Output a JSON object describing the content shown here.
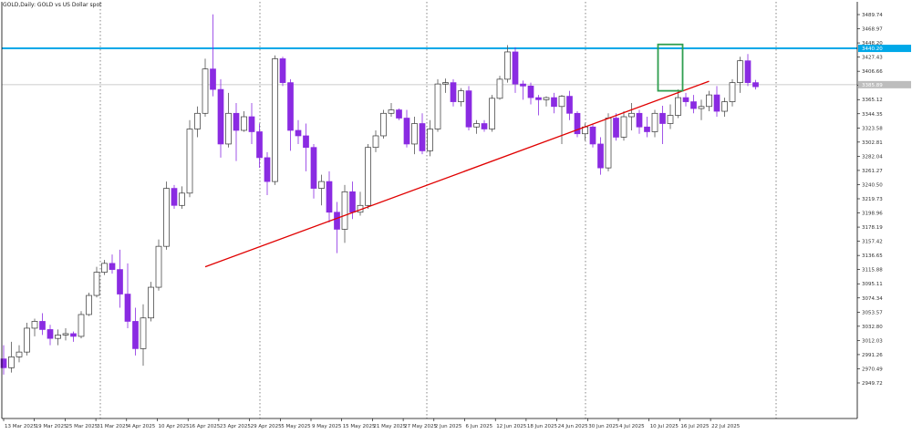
{
  "chart_data": {
    "type": "candlestick",
    "title": "GOLD,Daily: GOLD vs US Dollar spot",
    "colors": {
      "bullish_body": "#ffffff",
      "bearish_body": "#8a2be2",
      "wick": "#555555",
      "support_line": "#e00000",
      "resistance_line": "#00a8e8",
      "current_price_line": "#bdbdbd",
      "highlight_box": "#2e9e4f",
      "axis": "#000000",
      "grid": "#000000"
    },
    "price_axis": {
      "ylim": [
        2949.72,
        3489.74
      ],
      "ticks": [
        "3489.74",
        "3468.97",
        "3448.20",
        "3427.43",
        "3406.66",
        "3385.89",
        "3365.12",
        "3344.35",
        "3323.58",
        "3302.81",
        "3282.04",
        "3261.27",
        "3240.50",
        "3219.73",
        "3198.96",
        "3178.19",
        "3157.42",
        "3136.65",
        "3115.88",
        "3095.11",
        "3074.34",
        "3053.57",
        "3032.80",
        "3012.03",
        "2991.26",
        "2970.49",
        "2949.72"
      ],
      "resistance_label": "3440.20",
      "current_label": "3385.89"
    },
    "x_axis": {
      "labels": [
        "13 Mar 2025",
        "19 Mar 2025",
        "25 Mar 2025",
        "31 Mar 2025",
        "4 Apr 2025",
        "10 Apr 2025",
        "16 Apr 2025",
        "23 Apr 2025",
        "29 Apr 2025",
        "5 May 2025",
        "9 May 2025",
        "15 May 2025",
        "21 May 2025",
        "27 May 2025",
        "2 Jun 2025",
        "6 Jun 2025",
        "12 Jun 2025",
        "18 Jun 2025",
        "24 Jun 2025",
        "30 Jun 2025",
        "4 Jul 2025",
        "10 Jul 2025",
        "16 Jul 2025",
        "22 Jul 2025"
      ]
    },
    "resistance_level": 3440.2,
    "current_price": 3387,
    "support_line": {
      "from": [
        26,
        3120
      ],
      "to": [
        91,
        3392
      ]
    },
    "highlight_box": {
      "from_index": 85,
      "to_index": 87,
      "low": 3378,
      "high": 3446
    },
    "candles": [
      [
        2985,
        3005,
        2962,
        2972
      ],
      [
        2972,
        3010,
        2965,
        2988
      ],
      [
        2988,
        3005,
        2980,
        2995
      ],
      [
        2995,
        3038,
        2990,
        3030
      ],
      [
        3030,
        3044,
        3018,
        3040
      ],
      [
        3040,
        3052,
        3020,
        3028
      ],
      [
        3028,
        3035,
        3005,
        3015
      ],
      [
        3015,
        3028,
        3005,
        3020
      ],
      [
        3020,
        3030,
        3012,
        3022
      ],
      [
        3022,
        3025,
        3010,
        3018
      ],
      [
        3018,
        3055,
        3015,
        3050
      ],
      [
        3050,
        3082,
        3048,
        3078
      ],
      [
        3078,
        3120,
        3075,
        3112
      ],
      [
        3112,
        3130,
        3108,
        3125
      ],
      [
        3125,
        3138,
        3110,
        3116
      ],
      [
        3116,
        3145,
        3060,
        3080
      ],
      [
        3080,
        3125,
        3030,
        3040
      ],
      [
        3040,
        3060,
        2990,
        3000
      ],
      [
        3000,
        3065,
        2975,
        3045
      ],
      [
        3045,
        3098,
        3040,
        3090
      ],
      [
        3090,
        3160,
        3085,
        3150
      ],
      [
        3150,
        3245,
        3145,
        3235
      ],
      [
        3235,
        3240,
        3205,
        3210
      ],
      [
        3210,
        3238,
        3205,
        3228
      ],
      [
        3228,
        3335,
        3222,
        3322
      ],
      [
        3322,
        3355,
        3310,
        3345
      ],
      [
        3345,
        3425,
        3340,
        3410
      ],
      [
        3410,
        3490,
        3370,
        3380
      ],
      [
        3380,
        3395,
        3280,
        3300
      ],
      [
        3300,
        3375,
        3295,
        3345
      ],
      [
        3345,
        3360,
        3275,
        3320
      ],
      [
        3320,
        3348,
        3318,
        3340
      ],
      [
        3340,
        3360,
        3300,
        3318
      ],
      [
        3318,
        3330,
        3265,
        3280
      ],
      [
        3280,
        3288,
        3225,
        3245
      ],
      [
        3245,
        3430,
        3240,
        3425
      ],
      [
        3425,
        3428,
        3385,
        3390
      ],
      [
        3390,
        3395,
        3290,
        3320
      ],
      [
        3320,
        3335,
        3300,
        3312
      ],
      [
        3312,
        3330,
        3260,
        3295
      ],
      [
        3295,
        3300,
        3220,
        3235
      ],
      [
        3235,
        3255,
        3210,
        3245
      ],
      [
        3245,
        3260,
        3185,
        3200
      ],
      [
        3200,
        3215,
        3140,
        3175
      ],
      [
        3175,
        3240,
        3155,
        3230
      ],
      [
        3230,
        3245,
        3190,
        3200
      ],
      [
        3200,
        3230,
        3195,
        3210
      ],
      [
        3210,
        3300,
        3205,
        3295
      ],
      [
        3295,
        3320,
        3288,
        3312
      ],
      [
        3312,
        3350,
        3308,
        3345
      ],
      [
        3345,
        3360,
        3340,
        3350
      ],
      [
        3350,
        3352,
        3335,
        3338
      ],
      [
        3338,
        3350,
        3295,
        3300
      ],
      [
        3300,
        3340,
        3285,
        3330
      ],
      [
        3330,
        3345,
        3285,
        3290
      ],
      [
        3290,
        3335,
        3282,
        3322
      ],
      [
        3322,
        3395,
        3318,
        3388
      ],
      [
        3388,
        3396,
        3375,
        3390
      ],
      [
        3390,
        3395,
        3355,
        3362
      ],
      [
        3362,
        3382,
        3355,
        3378
      ],
      [
        3378,
        3385,
        3320,
        3325
      ],
      [
        3325,
        3335,
        3315,
        3330
      ],
      [
        3330,
        3335,
        3318,
        3322
      ],
      [
        3322,
        3372,
        3318,
        3367
      ],
      [
        3367,
        3400,
        3365,
        3395
      ],
      [
        3395,
        3445,
        3390,
        3435
      ],
      [
        3435,
        3442,
        3375,
        3388
      ],
      [
        3388,
        3393,
        3365,
        3385
      ],
      [
        3385,
        3390,
        3358,
        3368
      ],
      [
        3368,
        3372,
        3342,
        3365
      ],
      [
        3365,
        3370,
        3355,
        3368
      ],
      [
        3368,
        3375,
        3345,
        3355
      ],
      [
        3355,
        3372,
        3300,
        3370
      ],
      [
        3370,
        3378,
        3335,
        3345
      ],
      [
        3345,
        3348,
        3310,
        3315
      ],
      [
        3315,
        3330,
        3305,
        3325
      ],
      [
        3325,
        3330,
        3295,
        3300
      ],
      [
        3300,
        3310,
        3255,
        3265
      ],
      [
        3265,
        3345,
        3260,
        3338
      ],
      [
        3338,
        3345,
        3305,
        3310
      ],
      [
        3310,
        3348,
        3305,
        3340
      ],
      [
        3340,
        3360,
        3320,
        3345
      ],
      [
        3345,
        3350,
        3315,
        3325
      ],
      [
        3325,
        3340,
        3310,
        3318
      ],
      [
        3318,
        3350,
        3310,
        3345
      ],
      [
        3345,
        3356,
        3300,
        3330
      ],
      [
        3330,
        3358,
        3322,
        3342
      ],
      [
        3342,
        3380,
        3338,
        3368
      ],
      [
        3368,
        3375,
        3355,
        3362
      ],
      [
        3362,
        3372,
        3345,
        3352
      ],
      [
        3352,
        3365,
        3335,
        3355
      ],
      [
        3355,
        3378,
        3348,
        3372
      ],
      [
        3372,
        3385,
        3340,
        3348
      ],
      [
        3348,
        3368,
        3340,
        3362
      ],
      [
        3362,
        3395,
        3355,
        3390
      ],
      [
        3390,
        3428,
        3375,
        3422
      ],
      [
        3422,
        3432,
        3385,
        3390
      ],
      [
        3390,
        3394,
        3380,
        3384
      ]
    ]
  }
}
